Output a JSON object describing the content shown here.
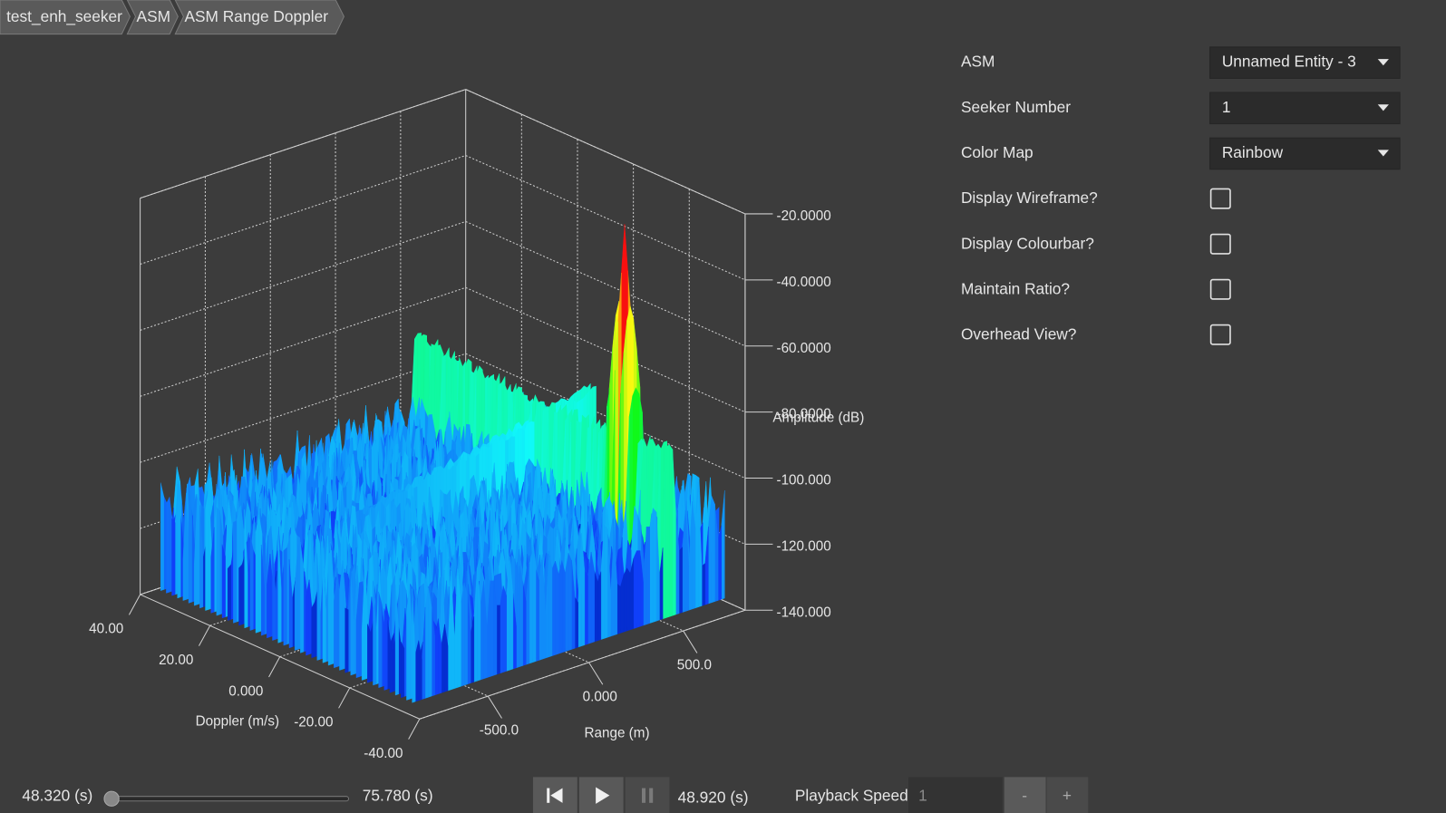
{
  "breadcrumb": [
    "test_enh_seeker",
    "ASM",
    "ASM Range Doppler"
  ],
  "plot": {
    "z_ticks": [
      "-20.0000",
      "-40.0000",
      "-60.0000",
      "-80.0000",
      "-100.000",
      "-120.000",
      "-140.000"
    ],
    "z_label": "Amplitude (dB)",
    "doppler_ticks": [
      "40.00",
      "20.00",
      "0.000",
      "-20.00",
      "-40.00"
    ],
    "doppler_label": "Doppler (m/s)",
    "range_ticks": [
      "-500.0",
      "0.000",
      "500.0"
    ],
    "range_label": "Range (m)"
  },
  "settings": {
    "dropdowns": [
      {
        "label": "ASM",
        "value": "Unnamed Entity - 3"
      },
      {
        "label": "Seeker Number",
        "value": "1"
      },
      {
        "label": "Color Map",
        "value": "Rainbow"
      }
    ],
    "checkboxes": [
      "Display Wireframe?",
      "Display Colourbar?",
      "Maintain Ratio?",
      "Overhead View?"
    ]
  },
  "playback": {
    "start": "48.320 (s)",
    "end": "75.780 (s)",
    "current": "48.920 (s)",
    "speed_label": "Playback Speed",
    "speed": "1",
    "decrease": "-",
    "increase": "+"
  }
}
